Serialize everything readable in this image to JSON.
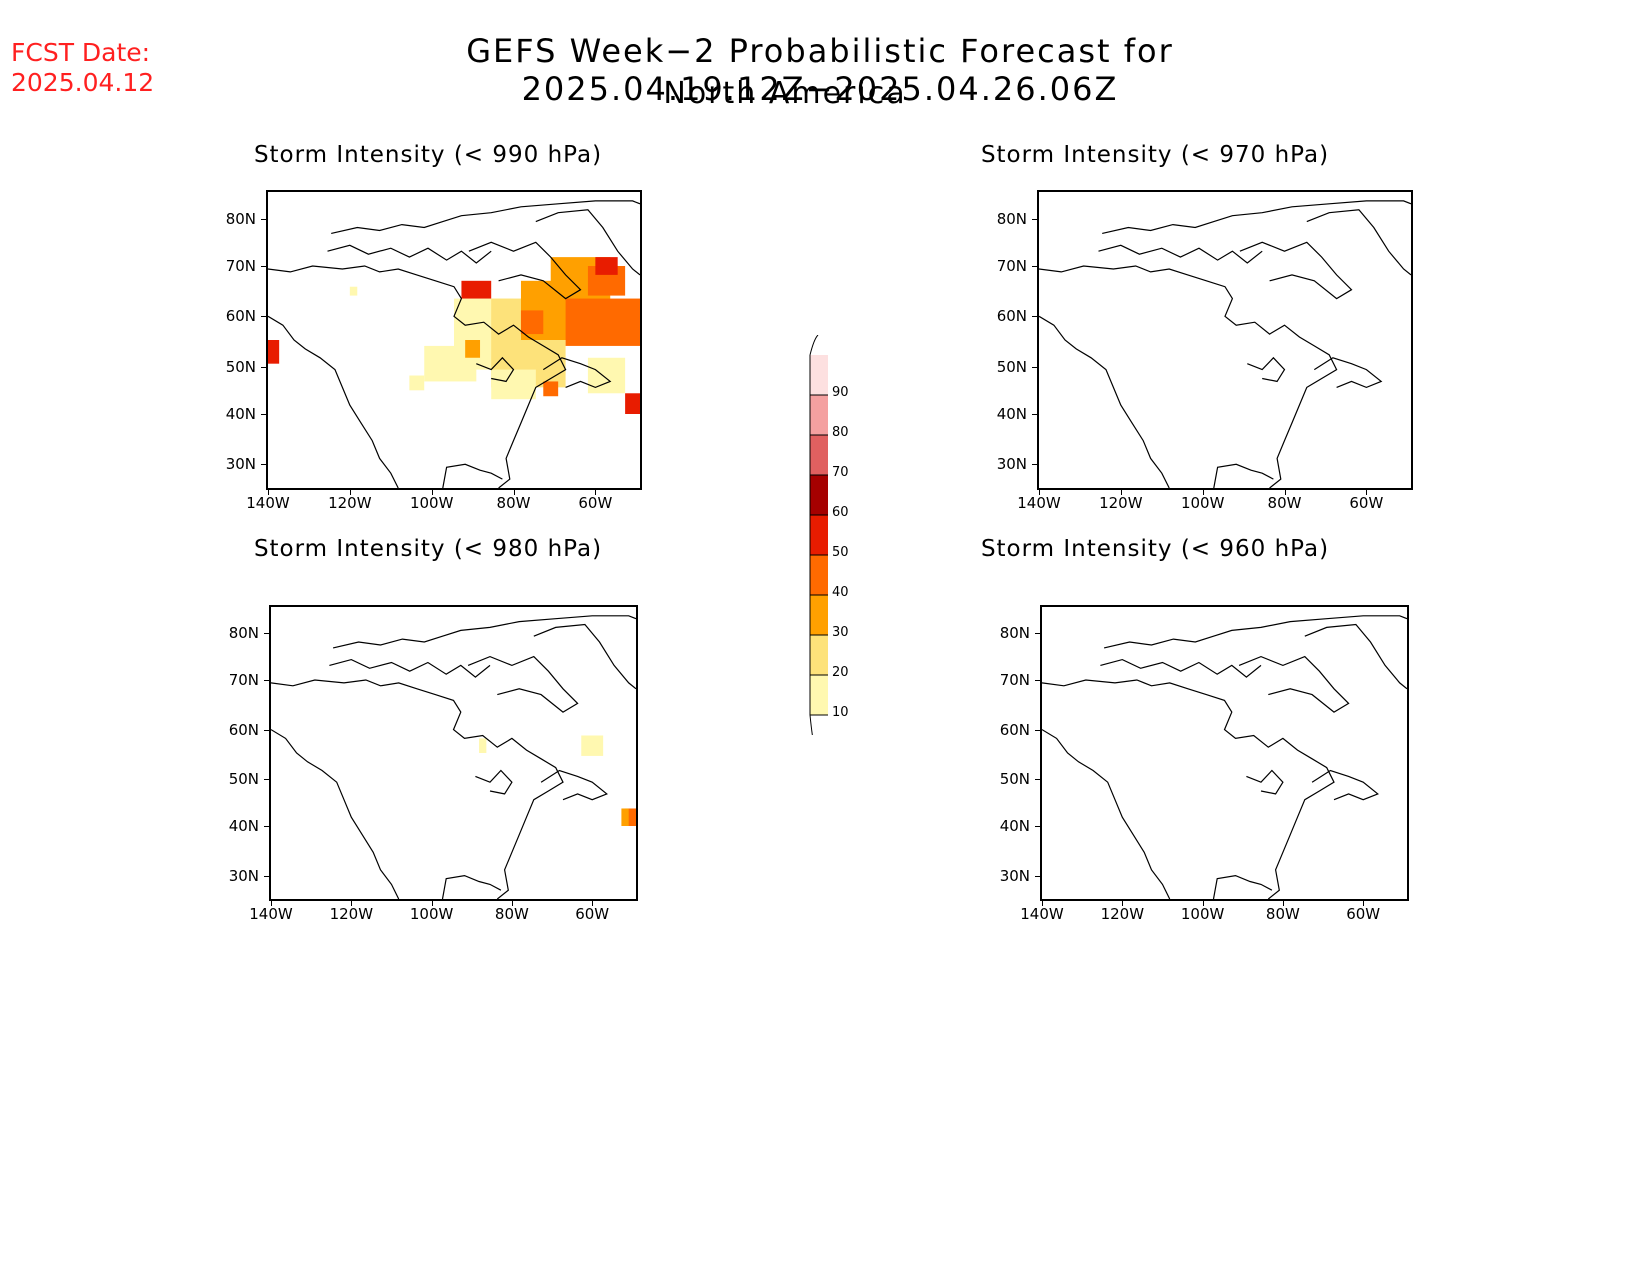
{
  "header": {
    "fcst_label": "FCST Date:",
    "fcst_date": "2025.04.12",
    "title": "GEFS Week−2 Probabilistic Forecast for 2025.04.19.12Z−2025.04.26.06Z",
    "subtitle": "North America"
  },
  "axes": {
    "lat_labels": [
      "80N",
      "70N",
      "60N",
      "50N",
      "40N",
      "30N"
    ],
    "lon_labels": [
      "140W",
      "120W",
      "100W",
      "80W",
      "60W"
    ]
  },
  "panels": [
    {
      "id": "p990",
      "title": "Storm Intensity (< 990 hPa)",
      "coverage": "widespread"
    },
    {
      "id": "p970",
      "title": "Storm Intensity (< 970 hPa)",
      "coverage": "none"
    },
    {
      "id": "p980",
      "title": "Storm Intensity (< 980 hPa)",
      "coverage": "sparse"
    },
    {
      "id": "p960",
      "title": "Storm Intensity (< 960 hPa)",
      "coverage": "none"
    }
  ],
  "colorbar": {
    "levels": [
      "10",
      "20",
      "30",
      "40",
      "50",
      "60",
      "70",
      "80",
      "90"
    ],
    "colors": [
      "#fff8b0",
      "#fde27a",
      "#ffa000",
      "#ff6a00",
      "#e81c00",
      "#a50000",
      "#e06060",
      "#f4a0a0",
      "#fde0e0"
    ]
  }
}
